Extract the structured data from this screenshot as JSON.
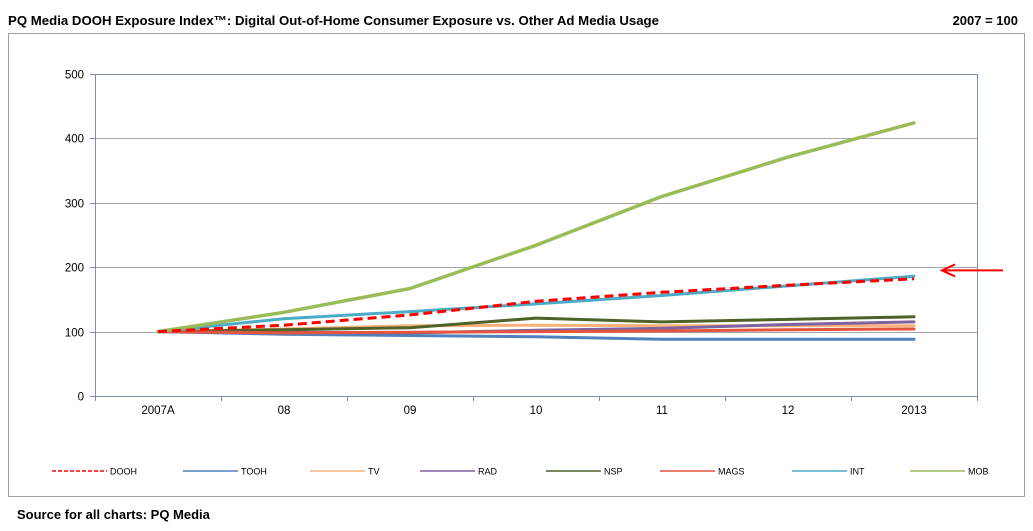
{
  "chart_data": {
    "type": "line",
    "title": "PQ Media DOOH Exposure Index™: Digital Out-of-Home Consumer Exposure vs. Other Ad Media Usage",
    "subtitle": "2007 = 100",
    "xlabel": "",
    "ylabel": "",
    "categories": [
      "2007A",
      "08",
      "09",
      "10",
      "11",
      "12",
      "2013"
    ],
    "ylim": [
      0,
      500
    ],
    "yticks": [
      0,
      100,
      200,
      300,
      400,
      500
    ],
    "grid": true,
    "legend_position": "bottom",
    "series": [
      {
        "name": "DOOH",
        "color": "#ff0000",
        "dashed": true,
        "values": [
          100,
          110,
          126,
          147,
          161,
          172,
          182
        ]
      },
      {
        "name": "TOOH",
        "color": "#4f81bd",
        "dashed": false,
        "values": [
          100,
          96,
          94,
          92,
          88,
          88,
          88
        ]
      },
      {
        "name": "TV",
        "color": "#f9b27a",
        "dashed": false,
        "values": [
          100,
          104,
          109,
          110,
          109,
          109,
          109
        ]
      },
      {
        "name": "RAD",
        "color": "#7f63a1",
        "dashed": false,
        "values": [
          100,
          99,
          98,
          102,
          105,
          111,
          115
        ]
      },
      {
        "name": "NSP",
        "color": "#4f6228",
        "dashed": false,
        "values": [
          100,
          103,
          106,
          121,
          115,
          119,
          123
        ]
      },
      {
        "name": "MAGS",
        "color": "#e4553f",
        "dashed": false,
        "values": [
          100,
          98,
          99,
          100,
          101,
          103,
          104
        ]
      },
      {
        "name": "INT",
        "color": "#4bacc6",
        "dashed": false,
        "values": [
          100,
          120,
          131,
          143,
          156,
          171,
          186
        ]
      },
      {
        "name": "MOB",
        "color": "#9bbb59",
        "dashed": false,
        "values": [
          100,
          130,
          167,
          234,
          310,
          371,
          424
        ]
      }
    ],
    "annotation_arrow": {
      "color": "#ff0000",
      "y_value": 195
    }
  },
  "footer": {
    "source": "Source for all charts: PQ Media"
  }
}
